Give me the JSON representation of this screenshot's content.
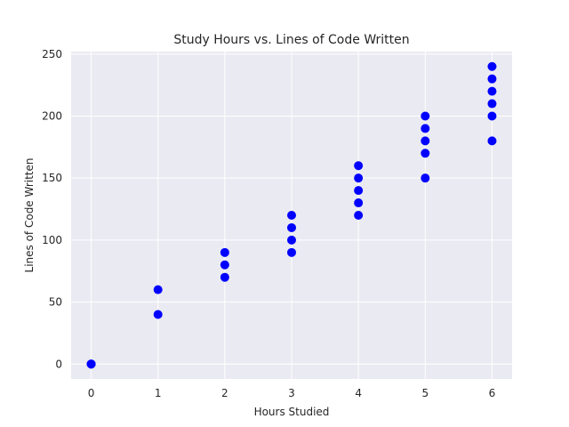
{
  "chart_data": {
    "type": "scatter",
    "title": "Study Hours vs. Lines of Code Written",
    "xlabel": "Hours Studied",
    "ylabel": "Lines of Code Written",
    "xlim": [
      -0.3,
      6.3
    ],
    "ylim": [
      -12,
      252
    ],
    "xticks": [
      0,
      1,
      2,
      3,
      4,
      5,
      6
    ],
    "yticks": [
      0,
      50,
      100,
      150,
      200,
      250
    ],
    "grid": true,
    "style": {
      "background": "#eaeaf2",
      "grid_color": "#ffffff",
      "marker_color": "#0000ff"
    },
    "series": [
      {
        "points": [
          [
            0,
            0
          ],
          [
            0,
            0
          ],
          [
            0,
            0
          ],
          [
            1,
            40
          ],
          [
            1,
            60
          ],
          [
            2,
            70
          ],
          [
            2,
            80
          ],
          [
            2,
            90
          ],
          [
            3,
            90
          ],
          [
            3,
            100
          ],
          [
            3,
            110
          ],
          [
            3,
            120
          ],
          [
            4,
            120
          ],
          [
            4,
            130
          ],
          [
            4,
            140
          ],
          [
            4,
            150
          ],
          [
            4,
            160
          ],
          [
            5,
            150
          ],
          [
            5,
            170
          ],
          [
            5,
            180
          ],
          [
            5,
            190
          ],
          [
            5,
            200
          ],
          [
            6,
            180
          ],
          [
            6,
            200
          ],
          [
            6,
            210
          ],
          [
            6,
            220
          ],
          [
            6,
            230
          ],
          [
            6,
            240
          ]
        ]
      }
    ]
  }
}
